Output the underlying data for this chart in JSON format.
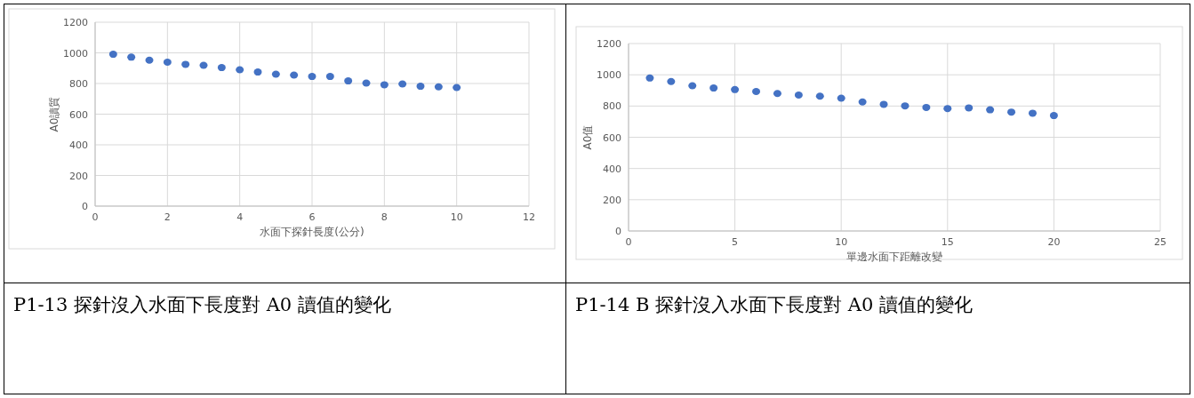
{
  "chart_data": [
    {
      "type": "scatter",
      "xlabel": "水面下探針長度(公分)",
      "ylabel": "A0讀質",
      "annotations": [
        "P1-13 探針沒入水面下長度對 A0 讀值的變化"
      ],
      "x": [
        0.5,
        1,
        1.5,
        2,
        2.5,
        3,
        3.5,
        4,
        4.5,
        5,
        5.5,
        6,
        6.5,
        7,
        7.5,
        8,
        8.5,
        9,
        9.5,
        10
      ],
      "values": [
        991,
        972,
        952,
        939,
        925,
        919,
        904,
        890,
        875,
        861,
        855,
        846,
        846,
        817,
        803,
        792,
        797,
        782,
        778,
        774
      ],
      "color": "#4472c4",
      "marker": "circle",
      "grid": true,
      "xlim": [
        0,
        12
      ],
      "xticks": [
        0,
        2,
        4,
        6,
        8,
        10,
        12
      ],
      "ylim": [
        0,
        1200
      ],
      "yticks": [
        0,
        200,
        400,
        600,
        800,
        1000,
        1200
      ]
    },
    {
      "type": "scatter",
      "xlabel": "單邊水面下距離改變",
      "ylabel": "A0值",
      "annotations": [
        "P1-14 B 探針沒入水面下長度對 A0 讀值的變化"
      ],
      "x": [
        1,
        2,
        3,
        4,
        5,
        6,
        7,
        8,
        9,
        10,
        11,
        12,
        13,
        14,
        15,
        16,
        17,
        18,
        19,
        20
      ],
      "values": [
        979,
        957,
        930,
        915,
        905,
        893,
        880,
        870,
        863,
        850,
        826,
        811,
        801,
        791,
        784,
        788,
        776,
        761,
        754,
        739
      ],
      "color": "#4472c4",
      "marker": "circle",
      "grid": true,
      "xlim": [
        0,
        25
      ],
      "xticks": [
        0,
        5,
        10,
        15,
        20,
        25
      ],
      "ylim": [
        0,
        1200
      ],
      "yticks": [
        0,
        200,
        400,
        600,
        800,
        1000,
        1200
      ]
    }
  ]
}
